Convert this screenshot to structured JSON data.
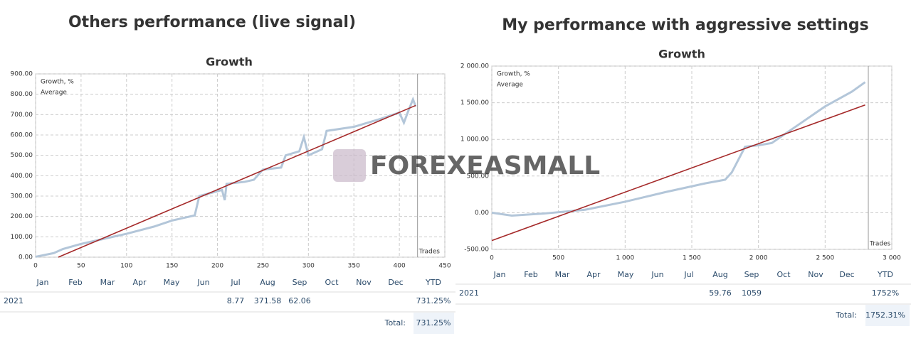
{
  "watermark": "FOREXEASMALL",
  "chart_data": [
    {
      "type": "line",
      "heading": "Others performance (live signal)",
      "title": "Growth",
      "xlim": [
        0,
        450
      ],
      "xticks": [
        0,
        50,
        100,
        150,
        200,
        250,
        300,
        350,
        400,
        450
      ],
      "ylim": [
        0,
        900
      ],
      "yticks": [
        {
          "value": 0,
          "label": "0.00"
        },
        {
          "value": 100,
          "label": "100.00"
        },
        {
          "value": 200,
          "label": "200.00"
        },
        {
          "value": 300,
          "label": "300.00"
        },
        {
          "value": 400,
          "label": "400.00"
        },
        {
          "value": 500,
          "label": "500.00"
        },
        {
          "value": 600,
          "label": "600.00"
        },
        {
          "value": 700,
          "label": "700.00"
        },
        {
          "value": 800,
          "label": "800.00"
        },
        {
          "value": 900,
          "label": "900.00"
        }
      ],
      "grid": true,
      "marker_label": "Trades",
      "marker_x": 420,
      "series": [
        {
          "name": "Growth, %",
          "color": "#b3c6d9",
          "x": [
            0,
            20,
            30,
            50,
            80,
            100,
            130,
            150,
            175,
            180,
            205,
            208,
            210,
            230,
            240,
            250,
            270,
            275,
            290,
            295,
            300,
            315,
            320,
            350,
            380,
            400,
            405,
            410,
            415,
            418
          ],
          "values": [
            2,
            20,
            40,
            65,
            95,
            115,
            150,
            180,
            205,
            300,
            330,
            280,
            360,
            370,
            380,
            430,
            440,
            500,
            520,
            590,
            500,
            530,
            620,
            640,
            680,
            710,
            660,
            720,
            775,
            740
          ]
        },
        {
          "name": "Average",
          "color": "#a52a2a",
          "x": [
            25,
            418
          ],
          "values": [
            0,
            745
          ]
        }
      ],
      "table": {
        "columns": [
          "Jan",
          "Feb",
          "Mar",
          "Apr",
          "May",
          "Jun",
          "Jul",
          "Aug",
          "Sep",
          "Oct",
          "Nov",
          "Dec",
          "YTD"
        ],
        "rows": [
          {
            "label": "2021",
            "cells": [
              null,
              null,
              null,
              null,
              null,
              null,
              8.77,
              371.58,
              62.06,
              null,
              null,
              null,
              "731.25%"
            ]
          }
        ],
        "total_label": "Total:",
        "total": "731.25%"
      }
    },
    {
      "type": "line",
      "heading": "My performance with aggressive settings",
      "title": "Growth",
      "xlim": [
        0,
        3000
      ],
      "xticks": [
        0,
        500,
        {
          "value": 1000,
          "label": "1 000"
        },
        {
          "value": 1500,
          "label": "1 500"
        },
        {
          "value": 2000,
          "label": "2 000"
        },
        {
          "value": 2500,
          "label": "2 500"
        },
        {
          "value": 3000,
          "label": "3 000"
        }
      ],
      "ylim": [
        -500,
        2000
      ],
      "yticks": [
        {
          "value": -500,
          "label": "-500.00"
        },
        {
          "value": 0,
          "label": "0.00"
        },
        {
          "value": 500,
          "label": "500.00"
        },
        {
          "value": 1000,
          "label": "1 000.00"
        },
        {
          "value": 1500,
          "label": "1 500.00"
        },
        {
          "value": 2000,
          "label": "2 000.00"
        }
      ],
      "grid": true,
      "marker_label": "Trades",
      "marker_x": 2824,
      "series": [
        {
          "name": "Growth, %",
          "color": "#b3c6d9",
          "x": [
            0,
            150,
            400,
            700,
            1000,
            1300,
            1600,
            1750,
            1800,
            1900,
            2000,
            2100,
            2300,
            2500,
            2700,
            2800
          ],
          "values": [
            0,
            -40,
            -10,
            40,
            150,
            280,
            400,
            450,
            550,
            900,
            920,
            950,
            1200,
            1450,
            1650,
            1780
          ]
        },
        {
          "name": "Average",
          "color": "#a52a2a",
          "x": [
            0,
            2800
          ],
          "values": [
            -380,
            1470
          ]
        }
      ],
      "table": {
        "columns": [
          "Jan",
          "Feb",
          "Mar",
          "Apr",
          "May",
          "Jun",
          "Jul",
          "Aug",
          "Sep",
          "Oct",
          "Nov",
          "Dec",
          "YTD"
        ],
        "rows": [
          {
            "label": "2021",
            "cells": [
              null,
              null,
              null,
              null,
              null,
              null,
              null,
              59.76,
              1059,
              null,
              null,
              null,
              "1752%"
            ]
          }
        ],
        "total_label": "Total:",
        "total": "1752.31%"
      }
    }
  ]
}
